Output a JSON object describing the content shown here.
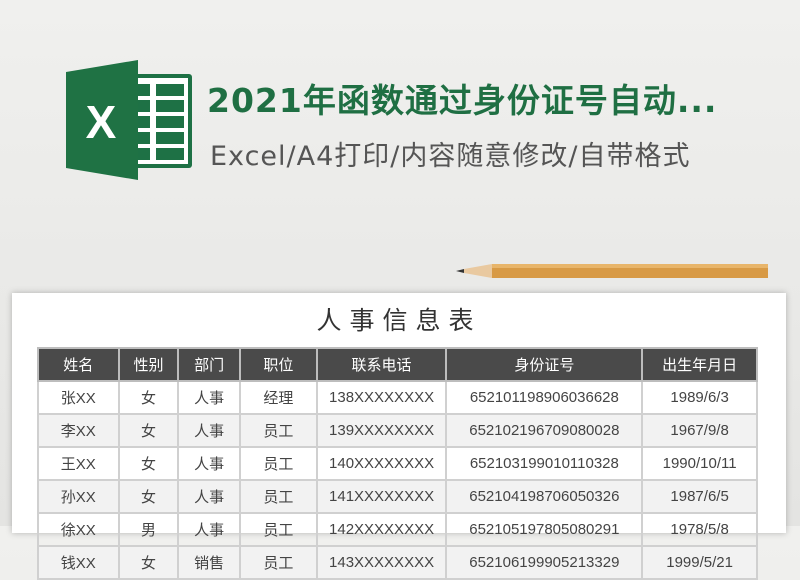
{
  "header": {
    "title": "2021年函数通过身份证号自动...",
    "subtitle": "Excel/A4打印/内容随意修改/自带格式",
    "logo_letter": "X",
    "accent": "#1f6f43"
  },
  "sheet": {
    "title": "人事信息表",
    "columns": [
      "姓名",
      "性别",
      "部门",
      "职位",
      "联系电话",
      "身份证号",
      "出生年月日"
    ],
    "rows": [
      [
        "张XX",
        "女",
        "人事",
        "经理",
        "138XXXXXXXX",
        "652101198906036628",
        "1989/6/3"
      ],
      [
        "李XX",
        "女",
        "人事",
        "员工",
        "139XXXXXXXX",
        "652102196709080028",
        "1967/9/8"
      ],
      [
        "王XX",
        "女",
        "人事",
        "员工",
        "140XXXXXXXX",
        "652103199010110328",
        "1990/10/11"
      ],
      [
        "孙XX",
        "女",
        "人事",
        "员工",
        "141XXXXXXXX",
        "652104198706050326",
        "1987/6/5"
      ],
      [
        "徐XX",
        "男",
        "人事",
        "员工",
        "142XXXXXXXX",
        "652105197805080291",
        "1978/5/8"
      ],
      [
        "钱XX",
        "女",
        "销售",
        "员工",
        "143XXXXXXXX",
        "652106199905213329",
        "1999/5/21"
      ]
    ]
  }
}
